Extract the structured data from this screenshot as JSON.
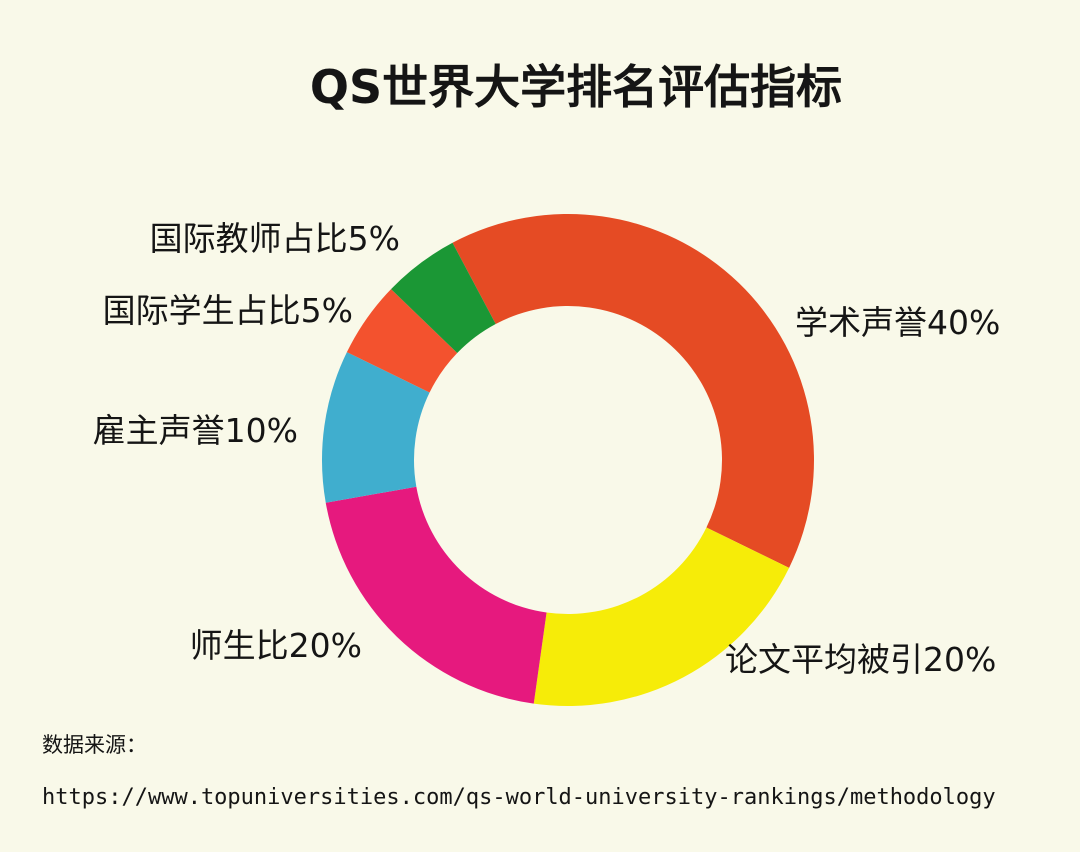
{
  "chart_data": {
    "type": "donut",
    "title": "QS世界大学排名评估指标",
    "categories": [
      "学术声誉",
      "论文平均被引",
      "师生比",
      "雇主声誉",
      "国际学生占比",
      "国际教师占比"
    ],
    "values": [
      40,
      20,
      20,
      10,
      5,
      5
    ],
    "value_labels": [
      "40%",
      "20%",
      "20%",
      "10%",
      "5%",
      "5%"
    ],
    "colors": [
      "#e54b24",
      "#f6ec08",
      "#e6197e",
      "#40aece",
      "#f3522e",
      "#1b9735"
    ],
    "source_label": "数据来源：",
    "source_url": "https://www.topuniversities.com/qs-world-university-rankings/methodology"
  }
}
